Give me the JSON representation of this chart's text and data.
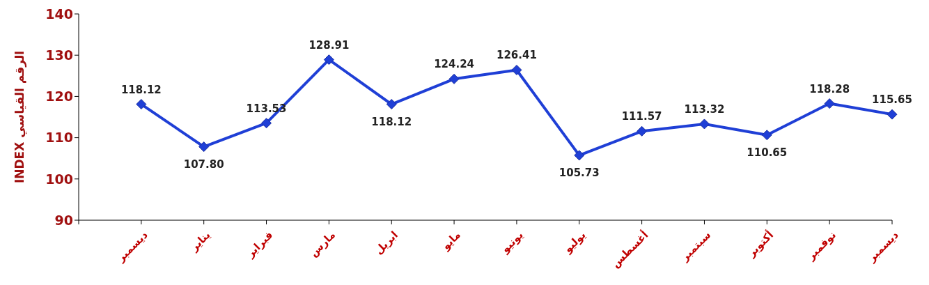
{
  "chart_data": {
    "type": "line",
    "ylabel": "INDEX الرقم القياسي",
    "categories": [
      null,
      "ديسمبر",
      "يناير",
      "فبراير",
      "مارس",
      "ابريل",
      "مايو",
      "يونيو",
      "يوليو",
      "أغسطس",
      "سبتمبر",
      "أكتوبر",
      "نوفمبر",
      "ديسمبر"
    ],
    "series": [
      {
        "color": "#1f3fd6",
        "values": [
          null,
          118.12,
          107.8,
          113.53,
          128.91,
          118.12,
          124.24,
          126.41,
          105.73,
          111.57,
          113.32,
          110.65,
          118.28,
          115.65
        ],
        "value_labels": [
          null,
          "118.12",
          "107.80",
          "113.53",
          "128.91",
          "118.12",
          "124.24",
          "126.41",
          "105.73",
          "111.57",
          "113.32",
          "110.65",
          "118.28",
          "115.65"
        ]
      }
    ],
    "ylim": [
      90,
      140
    ],
    "yticks": [
      90,
      100,
      110,
      120,
      130,
      140
    ],
    "grid": false,
    "legend": false,
    "marker": "diamond",
    "line_style": "solid"
  }
}
